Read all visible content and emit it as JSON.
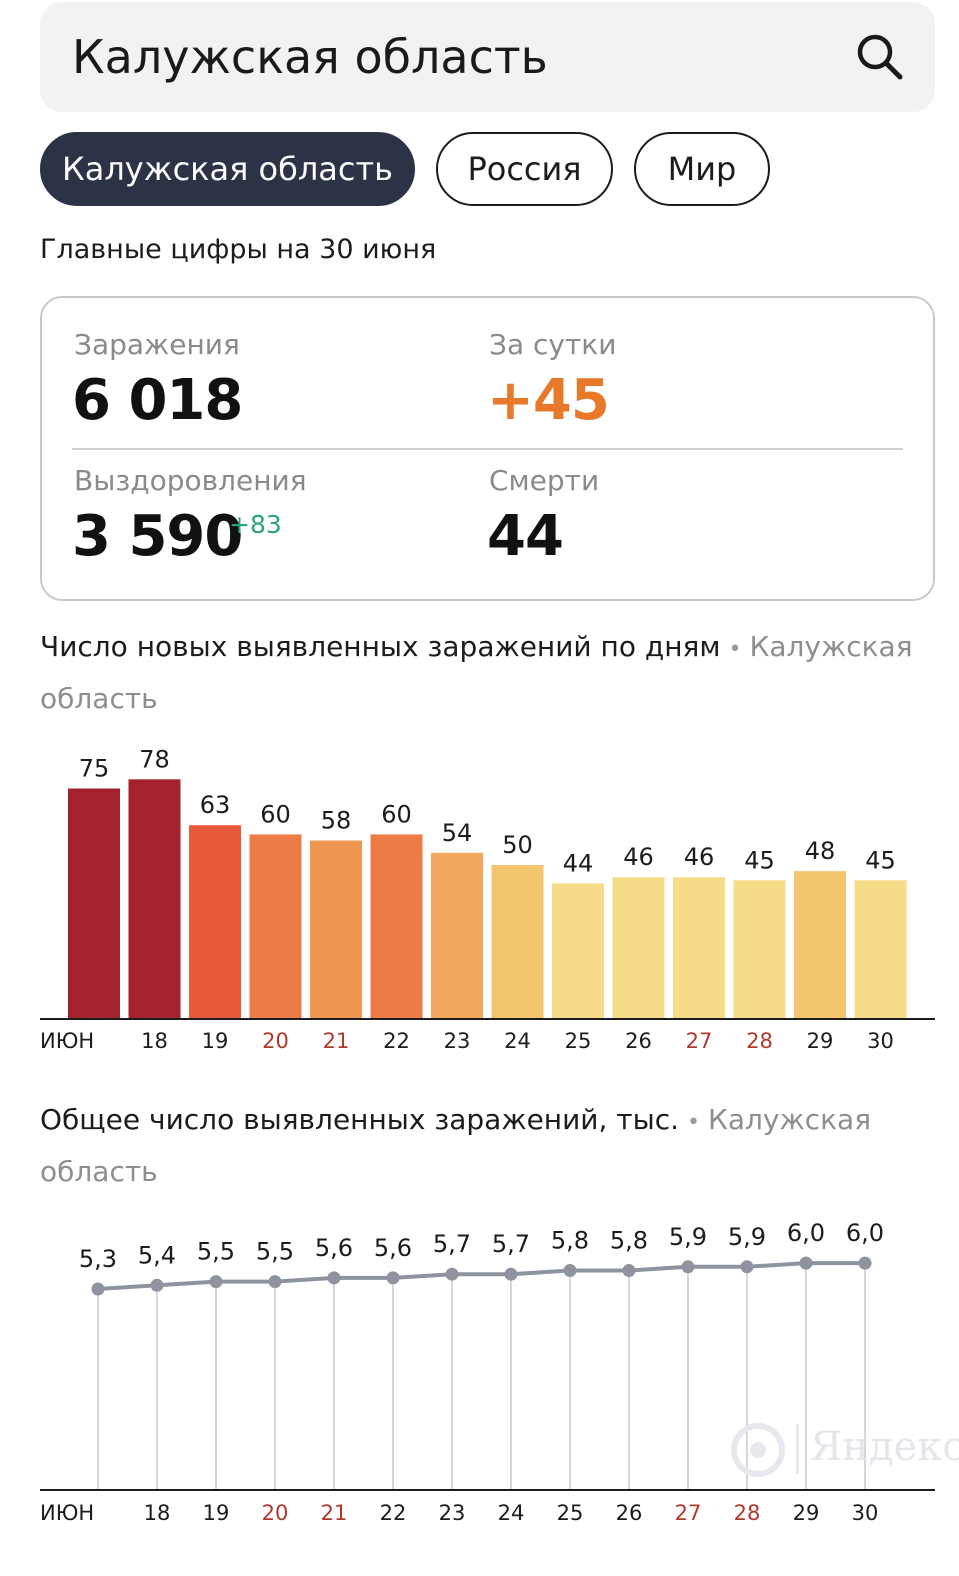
{
  "search": {
    "value": "Калужская область",
    "icon": "search-icon"
  },
  "tabs": [
    {
      "label": "Калужская область",
      "active": true
    },
    {
      "label": "Россия",
      "active": false
    },
    {
      "label": "Мир",
      "active": false
    }
  ],
  "subtitle": "Главные цифры на 30 июня",
  "stats": {
    "infections_label": "Заражения",
    "infections_value": "6 018",
    "daily_label": "За сутки",
    "daily_value": "+45",
    "recovered_label": "Выздоровления",
    "recovered_value": "3 590",
    "recovered_delta": "+83",
    "deaths_label": "Смерти",
    "deaths_value": "44"
  },
  "colors": {
    "accent_orange": "#e8782a",
    "delta_green": "#2ba578",
    "tab_active": "#2c3347",
    "weekend_tick": "#b0392e"
  },
  "chart_data": [
    {
      "type": "bar",
      "title": "Число новых выявленных заражений по дням",
      "region": "Калужская область",
      "categories": [
        "ИЮН",
        "18",
        "19",
        "20",
        "21",
        "22",
        "23",
        "24",
        "25",
        "26",
        "27",
        "28",
        "29",
        "30"
      ],
      "values": [
        75,
        78,
        63,
        60,
        58,
        60,
        54,
        50,
        44,
        46,
        46,
        45,
        48,
        45
      ],
      "colors": [
        "#a4212e",
        "#a4212e",
        "#e85a3a",
        "#ec7b45",
        "#ef9652",
        "#ec7b45",
        "#f1a85c",
        "#f4c56f",
        "#f6dc88",
        "#f6dc88",
        "#f6dc88",
        "#f6dc88",
        "#f4c56f",
        "#f6dc88"
      ],
      "weekend_categories": [
        "20",
        "21",
        "27",
        "28"
      ],
      "ylim": [
        0,
        80
      ],
      "grid": false
    },
    {
      "type": "line",
      "title": "Общее число выявленных заражений, тыс.",
      "region": "Калужская область",
      "categories": [
        "ИЮН",
        "18",
        "19",
        "20",
        "21",
        "22",
        "23",
        "24",
        "25",
        "26",
        "27",
        "28",
        "29",
        "30"
      ],
      "x_points": [
        "18",
        "19",
        "20",
        "21",
        "22",
        "23",
        "24",
        "25",
        "26",
        "27",
        "28",
        "29",
        "30"
      ],
      "values": [
        5.3,
        5.4,
        5.5,
        5.5,
        5.6,
        5.6,
        5.7,
        5.7,
        5.8,
        5.8,
        5.9,
        5.9,
        6.0,
        6.0
      ],
      "labels": [
        "5,3",
        "5,4",
        "5,5",
        "5,5",
        "5,6",
        "5,6",
        "5,7",
        "5,7",
        "5,8",
        "5,8",
        "5,9",
        "5,9",
        "6,0",
        "6,0"
      ],
      "weekend_categories": [
        "20",
        "21",
        "27",
        "28"
      ],
      "grid": false
    }
  ],
  "watermark": "Яндекс"
}
